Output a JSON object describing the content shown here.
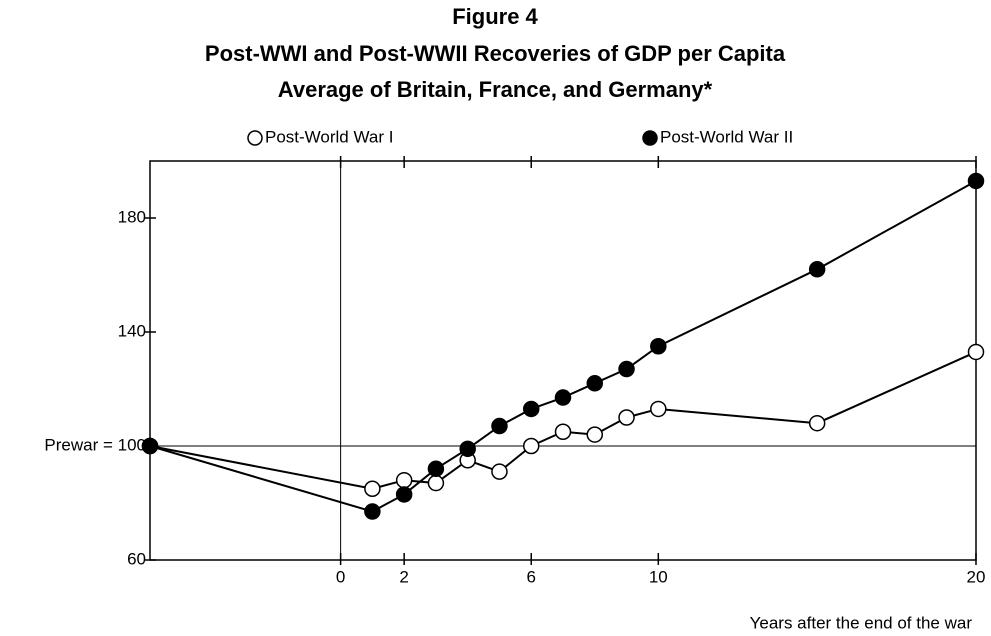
{
  "chart_data": {
    "type": "line",
    "title": "Figure 4",
    "subtitle": [
      "Post-WWI and Post-WWII Recoveries of GDP per Capita",
      "Average of Britain, France, and Germany*"
    ],
    "x_label": "Years after the end of the war",
    "x": [
      -6,
      1,
      2,
      3,
      4,
      5,
      6,
      7,
      8,
      9,
      10,
      15,
      20
    ],
    "series": [
      {
        "name": "Post-World War I",
        "color": "#000000",
        "marker": "open",
        "values": [
          100,
          85,
          88,
          87,
          95,
          91,
          100,
          105,
          104,
          110,
          113,
          108,
          133
        ]
      },
      {
        "name": "Post-World War II",
        "color": "#000000",
        "marker": "filled",
        "values": [
          100,
          77,
          83,
          92,
          99,
          107,
          113,
          117,
          122,
          127,
          135,
          162,
          193
        ]
      }
    ],
    "xlim": [
      -6,
      20
    ],
    "xticks": [
      0,
      2,
      6,
      10,
      20
    ],
    "ylim": [
      60,
      200
    ],
    "yticks": [
      60,
      {
        "value": 100,
        "label": "Prewar = 100"
      },
      140,
      180
    ],
    "reference_lines": {
      "x": 0,
      "y": 100
    },
    "grid": false
  }
}
